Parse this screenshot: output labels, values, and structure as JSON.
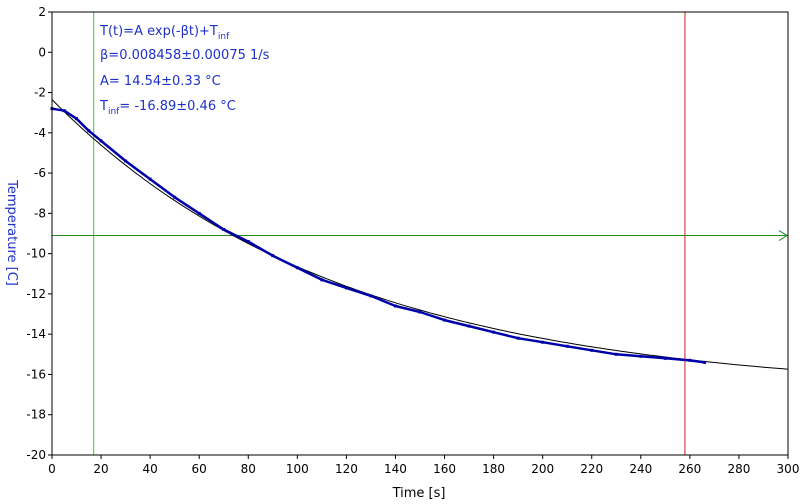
{
  "chart_data": {
    "type": "line",
    "xlabel": "Time [s]",
    "ylabel": "Temperature [C]",
    "xlim": [
      0,
      300
    ],
    "ylim": [
      -20,
      2
    ],
    "xticks": [
      0,
      20,
      40,
      60,
      80,
      100,
      120,
      140,
      160,
      180,
      200,
      220,
      240,
      260,
      280,
      300
    ],
    "yticks": [
      2,
      0,
      -2,
      -4,
      -6,
      -8,
      -10,
      -12,
      -14,
      -16,
      -18,
      -20
    ],
    "grid": false,
    "fit_annotation": {
      "formula": {
        "main": "T(t)=A exp(-βt)+T",
        "sub": "inf"
      },
      "beta": "β=0.008458±0.00075 1/s",
      "amplitude": "A= 14.54±0.33 °C",
      "t_inf": {
        "main": "T",
        "sub": "inf",
        "rest": "= -16.89±0.46 °C"
      }
    },
    "markers": {
      "left_cursor_x": 17,
      "right_cursor_x": 258,
      "horizontal_line_y": -9.1
    },
    "fit": {
      "A": 14.54,
      "beta": 0.008458,
      "T_inf": -16.89,
      "x_from": 0,
      "x_to": 300
    },
    "series": [
      {
        "role": "measured",
        "x": [
          0,
          5,
          10,
          15,
          20,
          30,
          40,
          50,
          60,
          70,
          80,
          90,
          100,
          110,
          120,
          130,
          140,
          150,
          160,
          170,
          180,
          190,
          200,
          210,
          220,
          230,
          240,
          250,
          260,
          266
        ],
        "y": [
          -2.8,
          -2.9,
          -3.3,
          -3.9,
          -4.4,
          -5.4,
          -6.3,
          -7.2,
          -8.0,
          -8.8,
          -9.4,
          -10.1,
          -10.7,
          -11.3,
          -11.7,
          -12.1,
          -12.6,
          -12.9,
          -13.3,
          -13.6,
          -13.9,
          -14.2,
          -14.4,
          -14.6,
          -14.8,
          -15.0,
          -15.1,
          -15.2,
          -15.3,
          -15.4
        ]
      }
    ],
    "colors": {
      "measured": "#0000aa",
      "fit": "#000000",
      "annotation": "#1f32c8",
      "left_cursor": "#33cc33",
      "right_cursor": "#cc2222",
      "horizontal_line": "#228822"
    }
  }
}
